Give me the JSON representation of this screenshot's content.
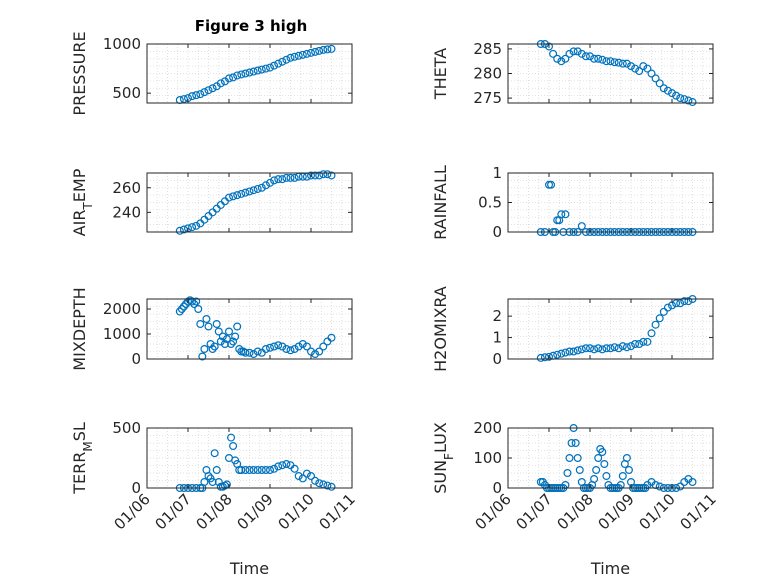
{
  "figure": {
    "title": "Figure 3 high",
    "xlabel": "Time",
    "x_ticks": [
      "01/06",
      "01/07",
      "01/08",
      "01/09",
      "01/10",
      "01/11"
    ],
    "x_range_days": [
      6,
      11
    ],
    "marker_color": "#0072BD",
    "grid": "on"
  },
  "chart_data": [
    {
      "type": "scatter",
      "id": "pressure",
      "ylabel": "PRESSURE",
      "ylim": [
        400,
        1000
      ],
      "yticks": [
        500,
        1000
      ],
      "x": [
        6.8,
        6.9,
        7.0,
        7.1,
        7.2,
        7.3,
        7.4,
        7.5,
        7.6,
        7.7,
        7.8,
        7.9,
        8.0,
        8.1,
        8.2,
        8.3,
        8.4,
        8.5,
        8.6,
        8.7,
        8.8,
        8.9,
        9.0,
        9.1,
        9.2,
        9.3,
        9.4,
        9.5,
        9.6,
        9.7,
        9.8,
        9.9,
        10.0,
        10.1,
        10.2,
        10.3,
        10.4,
        10.5
      ],
      "y": [
        430,
        440,
        450,
        470,
        480,
        490,
        510,
        530,
        550,
        570,
        600,
        620,
        650,
        660,
        680,
        690,
        700,
        710,
        720,
        730,
        740,
        750,
        760,
        780,
        800,
        820,
        840,
        860,
        870,
        880,
        890,
        900,
        910,
        920,
        930,
        940,
        945,
        950
      ]
    },
    {
      "type": "scatter",
      "id": "theta",
      "ylabel": "THETA",
      "ylim": [
        274,
        286
      ],
      "yticks": [
        275,
        280,
        285
      ],
      "x": [
        6.8,
        6.9,
        7.0,
        7.1,
        7.2,
        7.3,
        7.4,
        7.5,
        7.6,
        7.7,
        7.8,
        7.9,
        8.0,
        8.1,
        8.2,
        8.3,
        8.4,
        8.5,
        8.6,
        8.7,
        8.8,
        8.9,
        9.0,
        9.1,
        9.2,
        9.3,
        9.4,
        9.5,
        9.6,
        9.7,
        9.8,
        9.9,
        10.0,
        10.1,
        10.2,
        10.3,
        10.4,
        10.5
      ],
      "y": [
        286,
        286,
        285.5,
        284,
        283,
        282.5,
        283,
        284,
        284.5,
        284.5,
        284,
        283.5,
        283.5,
        283,
        283,
        282.8,
        282.5,
        282.5,
        282.3,
        282.2,
        282,
        282,
        281.5,
        281,
        280.5,
        281.5,
        281,
        280,
        279,
        278,
        277,
        276.5,
        276,
        275.5,
        275,
        274.8,
        274.5,
        274.2
      ]
    },
    {
      "type": "scatter",
      "id": "air-temp",
      "ylabel": "AIR",
      "ylabel_sub": "T",
      "ylabel_tail": "EMP",
      "ylim": [
        224,
        272
      ],
      "yticks": [
        240,
        260
      ],
      "x": [
        6.8,
        6.9,
        7.0,
        7.1,
        7.2,
        7.3,
        7.4,
        7.5,
        7.6,
        7.7,
        7.8,
        7.9,
        8.0,
        8.1,
        8.2,
        8.3,
        8.4,
        8.5,
        8.6,
        8.7,
        8.8,
        8.9,
        9.0,
        9.1,
        9.2,
        9.3,
        9.4,
        9.5,
        9.6,
        9.7,
        9.8,
        9.9,
        10.0,
        10.1,
        10.2,
        10.3,
        10.4,
        10.5
      ],
      "y": [
        225,
        226,
        227,
        228,
        229,
        231,
        234,
        237,
        240,
        243,
        246,
        249,
        252,
        253,
        254,
        255,
        256,
        257,
        258,
        259,
        260,
        262,
        264,
        266,
        267,
        267,
        268,
        268,
        268,
        269,
        269,
        269,
        270,
        270,
        270,
        271,
        271,
        270
      ]
    },
    {
      "type": "scatter",
      "id": "rainfall",
      "ylabel": "RAINFALL",
      "ylim": [
        0,
        1
      ],
      "yticks": [
        0,
        0.5,
        1
      ],
      "x": [
        6.8,
        6.9,
        7.0,
        7.05,
        7.1,
        7.15,
        7.2,
        7.25,
        7.3,
        7.35,
        7.4,
        7.5,
        7.6,
        7.7,
        7.8,
        7.9,
        8.0,
        8.1,
        8.2,
        8.3,
        8.4,
        8.5,
        8.6,
        8.7,
        8.8,
        8.9,
        9.0,
        9.1,
        9.2,
        9.3,
        9.4,
        9.5,
        9.6,
        9.7,
        9.8,
        9.9,
        10.0,
        10.1,
        10.2,
        10.3,
        10.4,
        10.5
      ],
      "y": [
        0,
        0,
        0.8,
        0.8,
        0,
        0,
        0.2,
        0.2,
        0.3,
        0,
        0.3,
        0,
        0,
        0,
        0.1,
        0,
        0,
        0,
        0,
        0,
        0,
        0,
        0,
        0,
        0,
        0,
        0,
        0,
        0,
        0,
        0,
        0,
        0,
        0,
        0,
        0,
        0,
        0,
        0,
        0,
        0,
        0
      ]
    },
    {
      "type": "scatter",
      "id": "mixdepth",
      "ylabel": "MIXDEPTH",
      "ylim": [
        0,
        2400
      ],
      "yticks": [
        0,
        1000,
        2000
      ],
      "x": [
        6.8,
        6.85,
        6.9,
        6.95,
        7.0,
        7.05,
        7.1,
        7.15,
        7.2,
        7.25,
        7.3,
        7.35,
        7.4,
        7.45,
        7.5,
        7.55,
        7.6,
        7.65,
        7.7,
        7.75,
        7.8,
        7.85,
        7.9,
        7.95,
        8.0,
        8.05,
        8.1,
        8.15,
        8.2,
        8.25,
        8.3,
        8.35,
        8.4,
        8.5,
        8.6,
        8.7,
        8.8,
        8.9,
        9.0,
        9.1,
        9.2,
        9.3,
        9.4,
        9.5,
        9.6,
        9.7,
        9.8,
        9.9,
        10.0,
        10.1,
        10.2,
        10.3,
        10.4,
        10.5
      ],
      "y": [
        1900,
        2000,
        2100,
        2200,
        2300,
        2350,
        2300,
        2200,
        2300,
        2000,
        1400,
        100,
        400,
        1600,
        1300,
        600,
        400,
        500,
        1400,
        1100,
        700,
        900,
        600,
        800,
        1100,
        600,
        700,
        900,
        1300,
        400,
        300,
        300,
        250,
        250,
        200,
        300,
        250,
        400,
        450,
        500,
        550,
        500,
        400,
        350,
        400,
        500,
        600,
        500,
        300,
        200,
        300,
        500,
        700,
        850
      ]
    },
    {
      "type": "scatter",
      "id": "h2omixra",
      "ylabel": "H2OMIXRA",
      "ylim": [
        0,
        2.8
      ],
      "yticks": [
        0,
        1,
        2
      ],
      "x": [
        6.8,
        6.9,
        7.0,
        7.1,
        7.2,
        7.3,
        7.4,
        7.5,
        7.6,
        7.7,
        7.8,
        7.9,
        8.0,
        8.1,
        8.2,
        8.3,
        8.4,
        8.5,
        8.6,
        8.7,
        8.8,
        8.9,
        9.0,
        9.1,
        9.2,
        9.3,
        9.4,
        9.5,
        9.6,
        9.7,
        9.8,
        9.9,
        10.0,
        10.1,
        10.2,
        10.3,
        10.4,
        10.5
      ],
      "y": [
        0.05,
        0.08,
        0.1,
        0.15,
        0.2,
        0.25,
        0.3,
        0.35,
        0.35,
        0.4,
        0.45,
        0.5,
        0.5,
        0.45,
        0.5,
        0.45,
        0.5,
        0.5,
        0.55,
        0.5,
        0.6,
        0.55,
        0.6,
        0.7,
        0.7,
        0.8,
        0.8,
        1.2,
        1.6,
        1.9,
        2.2,
        2.4,
        2.5,
        2.6,
        2.6,
        2.7,
        2.7,
        2.8
      ]
    },
    {
      "type": "scatter",
      "id": "terr-msl",
      "ylabel": "TERR",
      "ylabel_sub": "M",
      "ylabel_tail": "SL",
      "ylim": [
        0,
        500
      ],
      "yticks": [
        0,
        500
      ],
      "x": [
        6.8,
        6.9,
        7.0,
        7.1,
        7.2,
        7.3,
        7.35,
        7.4,
        7.45,
        7.5,
        7.55,
        7.6,
        7.65,
        7.7,
        7.75,
        7.8,
        7.85,
        7.9,
        7.95,
        8.0,
        8.05,
        8.1,
        8.15,
        8.2,
        8.25,
        8.3,
        8.4,
        8.5,
        8.6,
        8.7,
        8.8,
        8.9,
        9.0,
        9.1,
        9.2,
        9.3,
        9.4,
        9.5,
        9.6,
        9.7,
        9.8,
        9.9,
        10.0,
        10.1,
        10.2,
        10.3,
        10.4,
        10.5
      ],
      "y": [
        0,
        0,
        0,
        0,
        0,
        0,
        0,
        50,
        150,
        100,
        80,
        50,
        290,
        150,
        50,
        10,
        10,
        20,
        30,
        250,
        420,
        350,
        230,
        200,
        150,
        150,
        150,
        150,
        150,
        150,
        150,
        150,
        150,
        160,
        180,
        190,
        200,
        190,
        160,
        100,
        80,
        120,
        100,
        60,
        40,
        30,
        20,
        10
      ]
    },
    {
      "type": "scatter",
      "id": "sun-flux",
      "ylabel": "SUN",
      "ylabel_sub": "F",
      "ylabel_tail": "LUX",
      "ylim": [
        0,
        200
      ],
      "yticks": [
        0,
        100,
        200
      ],
      "x": [
        6.8,
        6.85,
        6.9,
        6.95,
        7.0,
        7.05,
        7.1,
        7.15,
        7.2,
        7.25,
        7.3,
        7.35,
        7.4,
        7.45,
        7.5,
        7.55,
        7.6,
        7.65,
        7.7,
        7.75,
        7.8,
        7.85,
        7.9,
        7.95,
        8.0,
        8.05,
        8.1,
        8.15,
        8.2,
        8.25,
        8.3,
        8.35,
        8.4,
        8.45,
        8.5,
        8.55,
        8.6,
        8.65,
        8.7,
        8.75,
        8.8,
        8.85,
        8.9,
        8.95,
        9.0,
        9.05,
        9.1,
        9.15,
        9.2,
        9.25,
        9.3,
        9.35,
        9.4,
        9.5,
        9.6,
        9.7,
        9.8,
        9.9,
        10.0,
        10.1,
        10.2,
        10.3,
        10.4,
        10.5
      ],
      "y": [
        20,
        20,
        10,
        0,
        0,
        0,
        0,
        0,
        0,
        0,
        0,
        0,
        10,
        50,
        100,
        150,
        200,
        150,
        100,
        60,
        20,
        0,
        0,
        0,
        0,
        10,
        30,
        60,
        100,
        130,
        120,
        80,
        40,
        10,
        0,
        0,
        0,
        0,
        0,
        10,
        40,
        80,
        100,
        60,
        20,
        0,
        0,
        0,
        0,
        0,
        0,
        0,
        10,
        20,
        10,
        5,
        0,
        0,
        0,
        0,
        5,
        20,
        30,
        20
      ]
    }
  ]
}
